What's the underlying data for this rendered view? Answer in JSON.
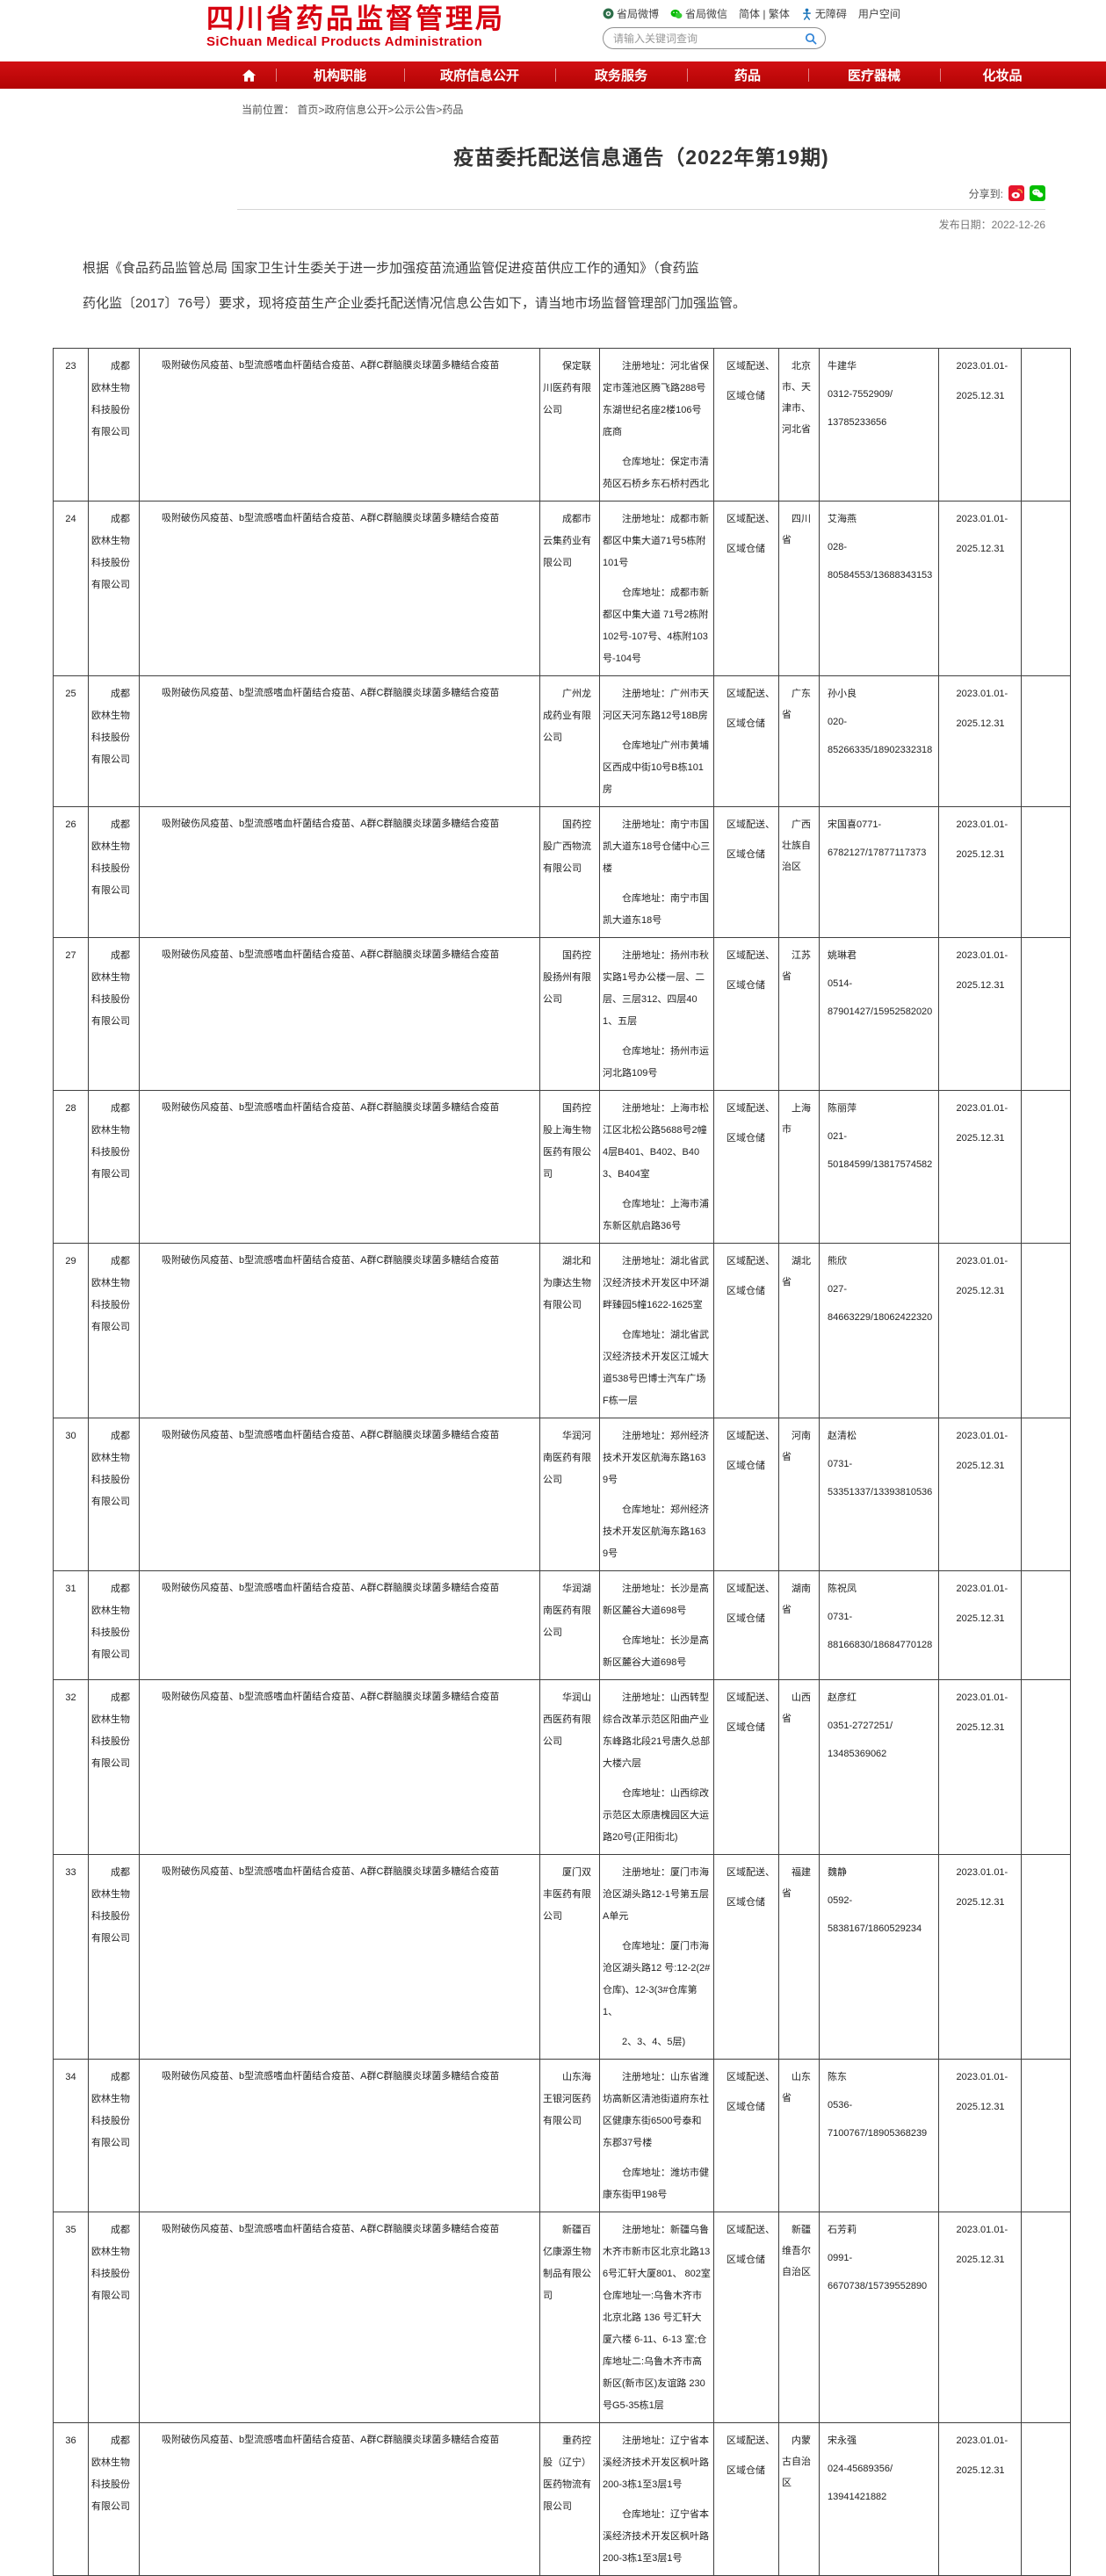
{
  "colors": {
    "brand_red": "#d7000f",
    "nav_red": "#c00a0e",
    "weibo_red": "#e6162d",
    "wechat_green": "#09bb07",
    "link_blue": "#2e82d6"
  },
  "header": {
    "logo_cn": "四川省药品监督管理局",
    "logo_en": "SiChuan Medical Products Administration",
    "links": [
      {
        "label": "省局微博",
        "icon": "weibo-badge-icon"
      },
      {
        "label": "省局微信",
        "icon": "wechat-badge-icon"
      },
      {
        "label": "简体 | 繁体",
        "icon": ""
      },
      {
        "label": "无障碍",
        "icon": "accessibility-icon"
      },
      {
        "label": "用户空间",
        "icon": ""
      }
    ],
    "search": {
      "placeholder": "请输入关键词查询"
    }
  },
  "nav": {
    "items": [
      "机构职能",
      "政府信息公开",
      "政务服务",
      "药品",
      "医疗器械",
      "化妆品"
    ]
  },
  "breadcrumb": {
    "label": "当前位置：",
    "path": "首页>政府信息公开>公示公告>药品"
  },
  "article": {
    "title": "疫苗委托配送信息通告（2022年第19期)",
    "share_label": "分享到:",
    "publish_label": "发布日期：",
    "publish_date": "2022-12-26",
    "intro": "根据《食品药品监管总局 国家卫生计生委关于进一步加强疫苗流通监管促进疫苗供应工作的通知》（食药监\n药化监〔2017〕76号）要求，现将疫苗生产企业委托配送情况信息公告如下，请当地市场监督管理部门加强监管。"
  },
  "table": {
    "rows": [
      {
        "no": "23",
        "manufacturer": "成都欧林生物科技股份有限公司",
        "vaccines": "吸附破伤风疫苗、b型流感嗜血杆菌结合疫苗、A群C群脑膜炎球菌多糖结合疫苗",
        "distributor": "保定联川医药有限公司",
        "address": "注册地址：河北省保定市莲池区腾飞路288号东湖世纪名座2楼106号底商\n仓库地址：保定市清苑区石桥乡东石桥村西北",
        "scope": "区域配送、\n区域仓储",
        "region": "北京市、天津市、河北省",
        "contact": "牛建华\n0312-7552909/\n13785233656",
        "period": "2023.01.01-\n2025.12.31"
      },
      {
        "no": "24",
        "manufacturer": "成都欧林生物科技股份有限公司",
        "vaccines": "吸附破伤风疫苗、b型流感嗜血杆菌结合疫苗、A群C群脑膜炎球菌多糖结合疫苗",
        "distributor": "成都市云集药业有限公司",
        "address": "注册地址：成都市新都区中集大道71号5栋附101号\n仓库地址：成都市新都区中集大道 71号2栋附 102号-107号、4栋附103 号-104号",
        "scope": "区域配送、\n区域仓储",
        "region": "四川省",
        "contact": "艾海燕\n028-\n80584553/13688343153",
        "period": "2023.01.01-\n2025.12.31"
      },
      {
        "no": "25",
        "manufacturer": "成都欧林生物科技股份有限公司",
        "vaccines": "吸附破伤风疫苗、b型流感嗜血杆菌结合疫苗、A群C群脑膜炎球菌多糖结合疫苗",
        "distributor": "广州龙成药业有限公司",
        "address": "注册地址：广州市天河区天河东路12号18B房\n仓库地址广州市黄埔区西成中街10号B栋101房",
        "scope": "区域配送、\n区域仓储",
        "region": "广东省",
        "contact": "孙小良\n020-\n85266335/18902332318",
        "period": "2023.01.01-\n2025.12.31"
      },
      {
        "no": "26",
        "manufacturer": "成都欧林生物科技股份有限公司",
        "vaccines": "吸附破伤风疫苗、b型流感嗜血杆菌结合疫苗、A群C群脑膜炎球菌多糖结合疫苗",
        "distributor": "国药控股广西物流有限公司",
        "address": "注册地址：南宁市国凯大道东18号仓储中心三楼\n仓库地址：南宁市国凯大道东18号",
        "scope": "区域配送、\n区域仓储",
        "region": "广西壮族自治区",
        "contact": "宋国喜0771-\n6782127/17877117373",
        "period": "2023.01.01-\n2025.12.31"
      },
      {
        "no": "27",
        "manufacturer": "成都欧林生物科技股份有限公司",
        "vaccines": "吸附破伤风疫苗、b型流感嗜血杆菌结合疫苗、A群C群脑膜炎球菌多糖结合疫苗",
        "distributor": "国药控股扬州有限公司",
        "address": "注册地址：扬州市秋实路1号办公楼一层、二层、三层312、四层401、五层\n仓库地址：扬州市运河北路109号",
        "scope": "区域配送、\n区域仓储",
        "region": "江苏省",
        "contact": "姚琳君\n0514-\n87901427/15952582020",
        "period": "2023.01.01-\n2025.12.31"
      },
      {
        "no": "28",
        "manufacturer": "成都欧林生物科技股份有限公司",
        "vaccines": "吸附破伤风疫苗、b型流感嗜血杆菌结合疫苗、A群C群脑膜炎球菌多糖结合疫苗",
        "distributor": "国药控股上海生物医药有限公司",
        "address": "注册地址：上海市松江区北松公路5688号2幢4层B401、B402、B403、B404室\n仓库地址：上海市浦东新区航启路36号",
        "scope": "区域配送、\n区域仓储",
        "region": "上海市",
        "contact": "陈丽萍\n021-\n50184599/13817574582",
        "period": "2023.01.01-\n2025.12.31"
      },
      {
        "no": "29",
        "manufacturer": "成都欧林生物科技股份有限公司",
        "vaccines": "吸附破伤风疫苗、b型流感嗜血杆菌结合疫苗、A群C群脑膜炎球菌多糖结合疫苗",
        "distributor": "湖北和为康达生物有限公司",
        "address": "注册地址：湖北省武汉经济技术开发区中环湖畔臻园5幢1622-1625室\n仓库地址：湖北省武汉经济技术开发区江城大道538号巴博士汽车广场F栋一层",
        "scope": "区域配送、\n区域仓储",
        "region": "湖北省",
        "contact": "熊欣\n027-\n84663229/18062422320",
        "period": "2023.01.01-\n2025.12.31"
      },
      {
        "no": "30",
        "manufacturer": "成都欧林生物科技股份有限公司",
        "vaccines": "吸附破伤风疫苗、b型流感嗜血杆菌结合疫苗、A群C群脑膜炎球菌多糖结合疫苗",
        "distributor": "华润河南医药有限公司",
        "address": "注册地址：郑州经济技术开发区航海东路1639号\n仓库地址：郑州经济技术开发区航海东路1639号",
        "scope": "区域配送、\n区域仓储",
        "region": "河南省",
        "contact": "赵清松\n0731-\n53351337/13393810536",
        "period": "2023.01.01-\n2025.12.31"
      },
      {
        "no": "31",
        "manufacturer": "成都欧林生物科技股份有限公司",
        "vaccines": "吸附破伤风疫苗、b型流感嗜血杆菌结合疫苗、A群C群脑膜炎球菌多糖结合疫苗",
        "distributor": "华润湖南医药有限公司",
        "address": "注册地址：长沙是高新区麓谷大道698号\n仓库地址：长沙是高新区麓谷大道698号",
        "scope": "区域配送、\n区域仓储",
        "region": "湖南省",
        "contact": "陈祝凤\n0731-\n88166830/18684770128",
        "period": "2023.01.01-\n2025.12.31"
      },
      {
        "no": "32",
        "manufacturer": "成都欧林生物科技股份有限公司",
        "vaccines": "吸附破伤风疫苗、b型流感嗜血杆菌结合疫苗、A群C群脑膜炎球菌多糖结合疫苗",
        "distributor": "华润山西医药有限公司",
        "address": "注册地址：山西转型综合改革示范区阳曲产业东峰路北段21号唐久总部大楼六层\n仓库地址：山西综改示范区太原唐槐园区大运路20号(正阳街北)",
        "scope": "区域配送、\n区域仓储",
        "region": "山西省",
        "contact": "赵彦红\n0351-2727251/\n13485369062",
        "period": "2023.01.01-\n2025.12.31"
      },
      {
        "no": "33",
        "manufacturer": "成都欧林生物科技股份有限公司",
        "vaccines": "吸附破伤风疫苗、b型流感嗜血杆菌结合疫苗、A群C群脑膜炎球菌多糖结合疫苗",
        "distributor": "厦门双丰医药有限公司",
        "address": "注册地址：厦门市海沧区湖头路12-1号第五层A单元\n仓库地址：厦门市海沧区湖头路12 号:12-2(2#仓库)、12-3(3#仓库第 1、\n2、3、4、5层)",
        "scope": "区域配送、\n区域仓储",
        "region": "福建省",
        "contact": "魏静\n0592-\n5838167/1860529234",
        "period": "2023.01.01-\n2025.12.31"
      },
      {
        "no": "34",
        "manufacturer": "成都欧林生物科技股份有限公司",
        "vaccines": "吸附破伤风疫苗、b型流感嗜血杆菌结合疫苗、A群C群脑膜炎球菌多糖结合疫苗",
        "distributor": "山东海王银河医药有限公司",
        "address": "注册地址：山东省潍坊高新区清池街道府东社区健康东街6500号泰和东郡37号楼\n仓库地址：潍坊市健康东街甲198号",
        "scope": "区域配送、\n区域仓储",
        "region": "山东省",
        "contact": "陈东\n0536-\n7100767/18905368239",
        "period": "2023.01.01-\n2025.12.31"
      },
      {
        "no": "35",
        "manufacturer": "成都欧林生物科技股份有限公司",
        "vaccines": "吸附破伤风疫苗、b型流感嗜血杆菌结合疫苗、A群C群脑膜炎球菌多糖结合疫苗",
        "distributor": "新疆百亿康源生物制品有限公司",
        "address": "注册地址：新疆乌鲁木齐市新市区北京北路136号汇轩大厦801、 802室      仓库地址一:乌鲁木齐市北京北路 136 号汇轩大厦六楼 6-11、6-13 室;仓库地址二:乌鲁木齐市高新区(新市区)友谊路 230号G5-35栋1层",
        "scope": "区域配送、\n区域仓储",
        "region": "新疆维吾尔自治区",
        "contact": "石芳莉\n0991-\n6670738/15739552890",
        "period": "2023.01.01-\n2025.12.31"
      },
      {
        "no": "36",
        "manufacturer": "成都欧林生物科技股份有限公司",
        "vaccines": "吸附破伤风疫苗、b型流感嗜血杆菌结合疫苗、A群C群脑膜炎球菌多糖结合疫苗",
        "distributor": "重药控股（辽宁）医药物流有限公司",
        "address": "注册地址：辽宁省本溪经济技术开发区枫叶路200-3栋1至3层1号\n仓库地址：辽宁省本溪经济技术开发区枫叶路200-3栋1至3层1号",
        "scope": "区域配送、\n区域仓储",
        "region": "内蒙古自治区",
        "contact": "宋永强\n024-45689356/\n13941421882",
        "period": "2023.01.01-\n2025.12.31"
      }
    ]
  }
}
